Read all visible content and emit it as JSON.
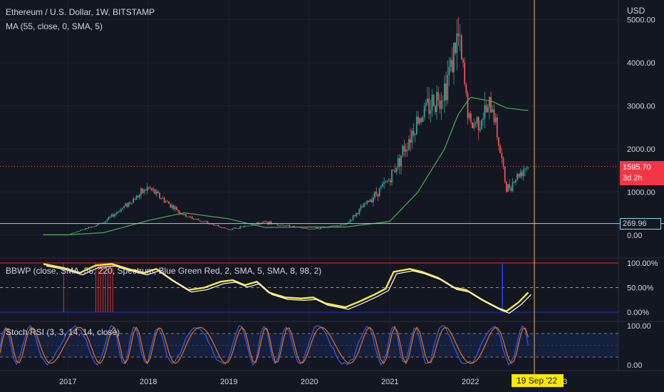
{
  "header": {
    "title": "Ethereum / U.S. Dollar, 1W, BITSTAMP",
    "ma_label": "MA (55, close, 0, SMA, 5)"
  },
  "price_axis": {
    "currency": "USD",
    "ticks": [
      "5000.00",
      "4000.00",
      "3000.00",
      "2000.00",
      "1000.00",
      "0.00"
    ],
    "current_price": "1595.70",
    "countdown": "3d 2h",
    "horizontal_line_value": "269.96"
  },
  "bbwp": {
    "label": "BBWP (close, SMA, 55, 220, Spectrum, Blue Green Red, 2, SMA, 5, SMA, 8, 98, 2)",
    "ticks": [
      "100.00%",
      "50.00%",
      "0.00%"
    ]
  },
  "stoch": {
    "label": "Stoch RSI (3, 3, 14, 14, close)",
    "ticks": [
      "100.00",
      "0.00"
    ]
  },
  "time_axis": {
    "labels": [
      "2017",
      "2018",
      "2019",
      "2020",
      "2021",
      "2022"
    ],
    "cursor_label": "19 Sep '22",
    "trailing_label": "23"
  },
  "colors": {
    "background": "#131722",
    "up": "#26a69a",
    "down": "#ef5350",
    "ma": "#4caf50",
    "cursor": "#f0b961",
    "cursor_tag": "#f9e900",
    "price_tag": "#f23645",
    "hline": "#80deea",
    "stoch_k": "#2962ff",
    "stoch_d": "#ff6d00"
  },
  "chart_data": {
    "type": "candlestick",
    "timeframe": "1W",
    "symbol": "Ethereum / U.S. Dollar",
    "x": [
      "2016-09",
      "2017-01",
      "2017-06",
      "2018-01",
      "2018-06",
      "2019-01",
      "2019-06",
      "2020-01",
      "2020-06",
      "2021-01",
      "2021-05",
      "2021-09",
      "2021-11",
      "2022-01",
      "2022-04",
      "2022-06",
      "2022-09"
    ],
    "close_approx": [
      12,
      10,
      300,
      1100,
      450,
      130,
      300,
      140,
      240,
      1300,
      2700,
      3400,
      4600,
      2500,
      3000,
      1050,
      1595.7
    ],
    "ma55_approx": [
      10,
      10,
      60,
      340,
      520,
      380,
      180,
      190,
      190,
      320,
      1000,
      2000,
      2800,
      3200,
      3100,
      2950,
      2900
    ],
    "current_price": 1595.7,
    "horizontal_line": 269.96,
    "ylim": [
      0,
      5000
    ]
  }
}
